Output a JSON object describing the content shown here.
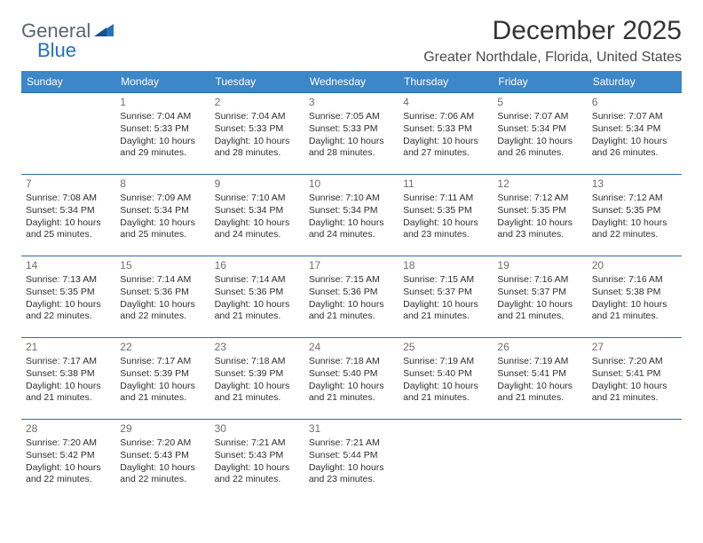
{
  "logo": {
    "part1": "General",
    "part2": "Blue"
  },
  "title": "December 2025",
  "location": "Greater Northdale, Florida, United States",
  "colors": {
    "header_bg": "#3b87c8",
    "header_text": "#ffffff",
    "cell_border": "#2f6fa8",
    "logo_gray": "#5c6670",
    "logo_blue": "#2671b8"
  },
  "day_headers": [
    "Sunday",
    "Monday",
    "Tuesday",
    "Wednesday",
    "Thursday",
    "Friday",
    "Saturday"
  ],
  "first_weekday_index": 1,
  "days": [
    {
      "n": 1,
      "sunrise": "7:04 AM",
      "sunset": "5:33 PM",
      "daylight": "10 hours and 29 minutes."
    },
    {
      "n": 2,
      "sunrise": "7:04 AM",
      "sunset": "5:33 PM",
      "daylight": "10 hours and 28 minutes."
    },
    {
      "n": 3,
      "sunrise": "7:05 AM",
      "sunset": "5:33 PM",
      "daylight": "10 hours and 28 minutes."
    },
    {
      "n": 4,
      "sunrise": "7:06 AM",
      "sunset": "5:33 PM",
      "daylight": "10 hours and 27 minutes."
    },
    {
      "n": 5,
      "sunrise": "7:07 AM",
      "sunset": "5:34 PM",
      "daylight": "10 hours and 26 minutes."
    },
    {
      "n": 6,
      "sunrise": "7:07 AM",
      "sunset": "5:34 PM",
      "daylight": "10 hours and 26 minutes."
    },
    {
      "n": 7,
      "sunrise": "7:08 AM",
      "sunset": "5:34 PM",
      "daylight": "10 hours and 25 minutes."
    },
    {
      "n": 8,
      "sunrise": "7:09 AM",
      "sunset": "5:34 PM",
      "daylight": "10 hours and 25 minutes."
    },
    {
      "n": 9,
      "sunrise": "7:10 AM",
      "sunset": "5:34 PM",
      "daylight": "10 hours and 24 minutes."
    },
    {
      "n": 10,
      "sunrise": "7:10 AM",
      "sunset": "5:34 PM",
      "daylight": "10 hours and 24 minutes."
    },
    {
      "n": 11,
      "sunrise": "7:11 AM",
      "sunset": "5:35 PM",
      "daylight": "10 hours and 23 minutes."
    },
    {
      "n": 12,
      "sunrise": "7:12 AM",
      "sunset": "5:35 PM",
      "daylight": "10 hours and 23 minutes."
    },
    {
      "n": 13,
      "sunrise": "7:12 AM",
      "sunset": "5:35 PM",
      "daylight": "10 hours and 22 minutes."
    },
    {
      "n": 14,
      "sunrise": "7:13 AM",
      "sunset": "5:35 PM",
      "daylight": "10 hours and 22 minutes."
    },
    {
      "n": 15,
      "sunrise": "7:14 AM",
      "sunset": "5:36 PM",
      "daylight": "10 hours and 22 minutes."
    },
    {
      "n": 16,
      "sunrise": "7:14 AM",
      "sunset": "5:36 PM",
      "daylight": "10 hours and 21 minutes."
    },
    {
      "n": 17,
      "sunrise": "7:15 AM",
      "sunset": "5:36 PM",
      "daylight": "10 hours and 21 minutes."
    },
    {
      "n": 18,
      "sunrise": "7:15 AM",
      "sunset": "5:37 PM",
      "daylight": "10 hours and 21 minutes."
    },
    {
      "n": 19,
      "sunrise": "7:16 AM",
      "sunset": "5:37 PM",
      "daylight": "10 hours and 21 minutes."
    },
    {
      "n": 20,
      "sunrise": "7:16 AM",
      "sunset": "5:38 PM",
      "daylight": "10 hours and 21 minutes."
    },
    {
      "n": 21,
      "sunrise": "7:17 AM",
      "sunset": "5:38 PM",
      "daylight": "10 hours and 21 minutes."
    },
    {
      "n": 22,
      "sunrise": "7:17 AM",
      "sunset": "5:39 PM",
      "daylight": "10 hours and 21 minutes."
    },
    {
      "n": 23,
      "sunrise": "7:18 AM",
      "sunset": "5:39 PM",
      "daylight": "10 hours and 21 minutes."
    },
    {
      "n": 24,
      "sunrise": "7:18 AM",
      "sunset": "5:40 PM",
      "daylight": "10 hours and 21 minutes."
    },
    {
      "n": 25,
      "sunrise": "7:19 AM",
      "sunset": "5:40 PM",
      "daylight": "10 hours and 21 minutes."
    },
    {
      "n": 26,
      "sunrise": "7:19 AM",
      "sunset": "5:41 PM",
      "daylight": "10 hours and 21 minutes."
    },
    {
      "n": 27,
      "sunrise": "7:20 AM",
      "sunset": "5:41 PM",
      "daylight": "10 hours and 21 minutes."
    },
    {
      "n": 28,
      "sunrise": "7:20 AM",
      "sunset": "5:42 PM",
      "daylight": "10 hours and 22 minutes."
    },
    {
      "n": 29,
      "sunrise": "7:20 AM",
      "sunset": "5:43 PM",
      "daylight": "10 hours and 22 minutes."
    },
    {
      "n": 30,
      "sunrise": "7:21 AM",
      "sunset": "5:43 PM",
      "daylight": "10 hours and 22 minutes."
    },
    {
      "n": 31,
      "sunrise": "7:21 AM",
      "sunset": "5:44 PM",
      "daylight": "10 hours and 23 minutes."
    }
  ],
  "labels": {
    "sunrise_prefix": "Sunrise: ",
    "sunset_prefix": "Sunset: ",
    "daylight_prefix": "Daylight: "
  }
}
